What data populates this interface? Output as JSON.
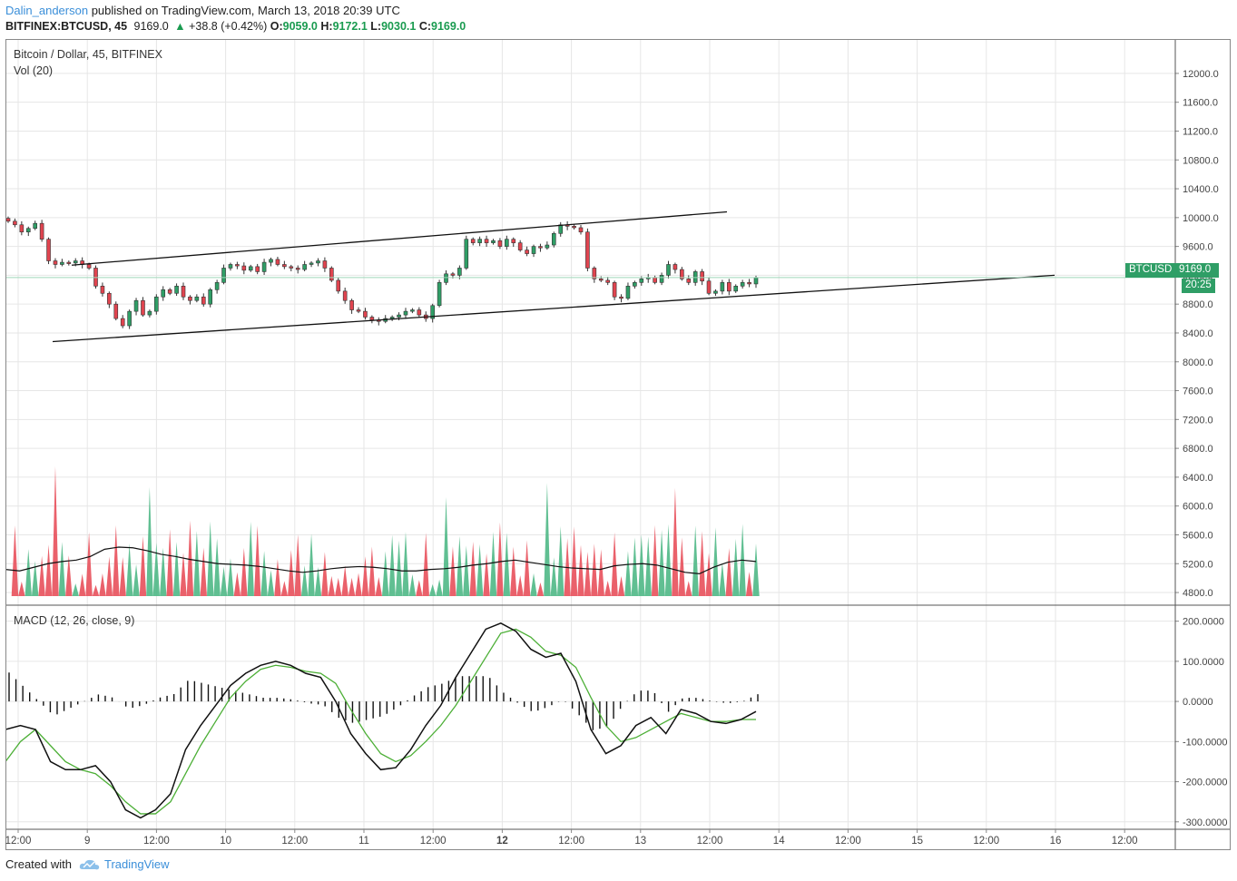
{
  "header": {
    "username": "Dalin_anderson",
    "published_text": "published on TradingView.com, March 13, 2018 20:39 UTC",
    "symbol": "BITFINEX:BTCUSD, 45",
    "last": "9169.0",
    "change": "+38.8 (+0.42%)",
    "o_label": "O:",
    "o_value": "9059.0",
    "h_label": "H:",
    "h_value": "9172.1",
    "l_label": "L:",
    "l_value": "9030.1",
    "c_label": "C:",
    "c_value": "9169.0"
  },
  "legends": {
    "main": "Bitcoin / Dollar, 45, BITFINEX",
    "volume": "Vol (20)",
    "macd": "MACD (12, 26, close, 9)"
  },
  "price_label": {
    "symbol": "BTCUSD",
    "value": "9169.0",
    "timer": "20:25"
  },
  "footer": {
    "created_with": "Created with",
    "brand": "TradingView"
  },
  "colors": {
    "up": "#2f9e66",
    "down": "#e0444f",
    "vol_up": "#4fb886",
    "vol_down": "#e8505b",
    "signal": "#4caf36",
    "grid": "#e6e6e6",
    "link": "#3b8fd9"
  },
  "chart_data": {
    "type": "candlestick",
    "x_tick_labels": [
      "12:00",
      "9",
      "12:00",
      "10",
      "12:00",
      "11",
      "12:00",
      "12",
      "12:00",
      "13",
      "12:00",
      "14",
      "12:00",
      "15",
      "12:00",
      "16",
      "12:00"
    ],
    "price_axis": {
      "ticks": [
        "12000.0",
        "11600.0",
        "11200.0",
        "10800.0",
        "10400.0",
        "10000.0",
        "9600.0",
        "9200.0",
        "8800.0",
        "8400.0",
        "8000.0",
        "7600.0",
        "7200.0",
        "6800.0",
        "6400.0",
        "6000.0",
        "5600.0",
        "5200.0",
        "4800.0"
      ],
      "range": [
        4700,
        12200
      ]
    },
    "macd_axis": {
      "ticks": [
        "200.0000",
        "100.0000",
        "0.0000",
        "-100.0000",
        "-200.0000",
        "-300.0000"
      ],
      "range": [
        -305,
        215
      ]
    },
    "price_close_path": [
      9950,
      9900,
      9800,
      9850,
      9920,
      9700,
      9400,
      9350,
      9380,
      9370,
      9400,
      9350,
      9300,
      9050,
      8950,
      8800,
      8600,
      8500,
      8700,
      8850,
      8650,
      8700,
      8900,
      9000,
      8950,
      9050,
      8900,
      8850,
      8900,
      8800,
      9000,
      9100,
      9300,
      9350,
      9330,
      9270,
      9320,
      9250,
      9380,
      9420,
      9350,
      9320,
      9300,
      9280,
      9350,
      9370,
      9400,
      9300,
      9130,
      8980,
      8850,
      8720,
      8700,
      8620,
      8580,
      8560,
      8600,
      8620,
      8650,
      8700,
      8720,
      8650,
      8600,
      8780,
      9100,
      9220,
      9200,
      9300,
      9700,
      9650,
      9700,
      9650,
      9680,
      9600,
      9700,
      9650,
      9550,
      9500,
      9600,
      9580,
      9620,
      9780,
      9900,
      9880,
      9860,
      9800,
      9300,
      9150,
      9130,
      9100,
      8900,
      8880,
      9050,
      9100,
      9150,
      9170,
      9100,
      9200,
      9350,
      9280,
      9150,
      9100,
      9250,
      9120,
      8950,
      8980,
      9100,
      8980,
      9050,
      9100,
      9080,
      9169
    ],
    "volume_close_ma_path": [
      5120,
      5100,
      5150,
      5200,
      5230,
      5250,
      5300,
      5400,
      5430,
      5420,
      5380,
      5330,
      5300,
      5260,
      5230,
      5200,
      5190,
      5180,
      5160,
      5130,
      5100,
      5080,
      5100,
      5130,
      5150,
      5160,
      5150,
      5130,
      5100,
      5100,
      5120,
      5130,
      5150,
      5180,
      5200,
      5230,
      5250,
      5220,
      5190,
      5160,
      5140,
      5130,
      5120,
      5170,
      5190,
      5200,
      5180,
      5130,
      5080,
      5060,
      5150,
      5220,
      5250,
      5230
    ],
    "macd_line_path": [
      -70,
      -60,
      -70,
      -150,
      -170,
      -170,
      -160,
      -200,
      -270,
      -290,
      -270,
      -230,
      -120,
      -60,
      -10,
      40,
      70,
      90,
      100,
      90,
      70,
      60,
      0,
      -80,
      -130,
      -170,
      -165,
      -120,
      -60,
      -10,
      60,
      120,
      180,
      195,
      175,
      130,
      110,
      120,
      50,
      -70,
      -130,
      -110,
      -60,
      -40,
      -80,
      -20,
      -30,
      -50,
      -55,
      -45,
      -25
    ],
    "signal_line_path": [
      -150,
      -100,
      -70,
      -110,
      -150,
      -170,
      -180,
      -210,
      -250,
      -280,
      -280,
      -250,
      -180,
      -110,
      -50,
      10,
      50,
      80,
      90,
      85,
      75,
      70,
      45,
      -20,
      -80,
      -130,
      -150,
      -135,
      -100,
      -60,
      -10,
      50,
      110,
      170,
      180,
      160,
      125,
      115,
      85,
      10,
      -60,
      -100,
      -90,
      -70,
      -50,
      -30,
      -40,
      -50,
      -50,
      -45,
      -45
    ]
  }
}
